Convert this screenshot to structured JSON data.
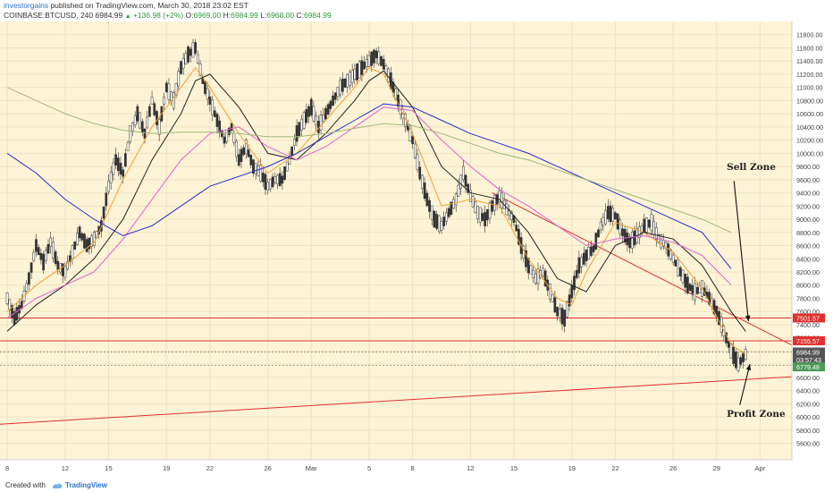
{
  "header": {
    "author": "investorgains",
    "published": " published on TradingView.com, March 30, 2018 23:02 EST",
    "symbol": "COINBASE:BTCUSD, 240",
    "price": "6984.99",
    "change": "+136.98 (+2%)",
    "ohlc_label_o": "O:",
    "ohlc_o": "6969.00",
    "ohlc_label_h": "H:",
    "ohlc_h": "6984.99",
    "ohlc_label_l": "L:",
    "ohlc_l": "6968.00",
    "ohlc_label_c": "C:",
    "ohlc_c": "6984.99"
  },
  "footer": {
    "created_with": "Created with",
    "brand": "TradingView",
    "brand_icon": "tradingview-logo-icon"
  },
  "chart_data": {
    "type": "candlestick",
    "background": "#fdf3d6",
    "x_ticks": [
      {
        "label": "8",
        "x": 0
      },
      {
        "label": "12",
        "x": 4
      },
      {
        "label": "15",
        "x": 7
      },
      {
        "label": "19",
        "x": 11
      },
      {
        "label": "22",
        "x": 14
      },
      {
        "label": "26",
        "x": 18
      },
      {
        "label": "Mar",
        "x": 21
      },
      {
        "label": "5",
        "x": 25
      },
      {
        "label": "8",
        "x": 28
      },
      {
        "label": "12",
        "x": 32
      },
      {
        "label": "15",
        "x": 35
      },
      {
        "label": "19",
        "x": 39
      },
      {
        "label": "22",
        "x": 42
      },
      {
        "label": "26",
        "x": 46
      },
      {
        "label": "29",
        "x": 49
      },
      {
        "label": "Apr",
        "x": 52
      }
    ],
    "xlim": [
      -0.5,
      54.2
    ],
    "ylim": [
      5350,
      12000
    ],
    "y_ticks": [
      5600,
      5800,
      6000,
      6200,
      6400,
      6600,
      6800,
      7000,
      7200,
      7400,
      7600,
      7800,
      8000,
      8200,
      8400,
      8600,
      8800,
      9000,
      9200,
      9400,
      9600,
      9800,
      10000,
      10200,
      10400,
      10600,
      10800,
      11000,
      11200,
      11400,
      11600,
      11800
    ],
    "y_tick_labels": [
      "5600.00",
      "5800.00",
      "6000.00",
      "6200.00",
      "6400.00",
      "6600.00",
      "6800.00",
      "7000.00",
      "7200.00",
      "7400.00",
      "7600.00",
      "7800.00",
      "8000.00",
      "8200.00",
      "8400.00",
      "8600.00",
      "8800.00",
      "9000.00",
      "9200.00",
      "9400.00",
      "9600.00",
      "9800.00",
      "10000.00",
      "10200.00",
      "10400.00",
      "10600.00",
      "10800.00",
      "11000.00",
      "11200.00",
      "11400.00",
      "11600.00",
      "11800.00"
    ],
    "price_path": [
      [
        0,
        7800
      ],
      [
        0.5,
        7500
      ],
      [
        1,
        7700
      ],
      [
        1.5,
        8100
      ],
      [
        2,
        8600
      ],
      [
        2.5,
        8350
      ],
      [
        3,
        8650
      ],
      [
        3.5,
        8300
      ],
      [
        4,
        8200
      ],
      [
        4.5,
        8500
      ],
      [
        5,
        8800
      ],
      [
        5.5,
        8600
      ],
      [
        6,
        8700
      ],
      [
        6.5,
        8900
      ],
      [
        7,
        9500
      ],
      [
        7.5,
        9900
      ],
      [
        8,
        9700
      ],
      [
        8.5,
        10300
      ],
      [
        9,
        10600
      ],
      [
        9.5,
        10300
      ],
      [
        10,
        10800
      ],
      [
        10.5,
        10400
      ],
      [
        11,
        11000
      ],
      [
        11.5,
        10800
      ],
      [
        12,
        11300
      ],
      [
        12.5,
        11500
      ],
      [
        13,
        11600
      ],
      [
        13.5,
        11100
      ],
      [
        14,
        10800
      ],
      [
        14.5,
        10500
      ],
      [
        15,
        10200
      ],
      [
        15.5,
        10400
      ],
      [
        16,
        9900
      ],
      [
        16.5,
        10100
      ],
      [
        17,
        9800
      ],
      [
        17.5,
        9700
      ],
      [
        18,
        9500
      ],
      [
        18.5,
        9600
      ],
      [
        19,
        9600
      ],
      [
        19.5,
        9900
      ],
      [
        20,
        10300
      ],
      [
        20.5,
        10500
      ],
      [
        21,
        10700
      ],
      [
        21.5,
        10400
      ],
      [
        22,
        10600
      ],
      [
        22.5,
        10800
      ],
      [
        23,
        11000
      ],
      [
        23.5,
        11100
      ],
      [
        24,
        11200
      ],
      [
        24.5,
        11300
      ],
      [
        25,
        11400
      ],
      [
        25.5,
        11500
      ],
      [
        26,
        11350
      ],
      [
        26.5,
        11100
      ],
      [
        27,
        10800
      ],
      [
        27.5,
        10500
      ],
      [
        28,
        10200
      ],
      [
        28.5,
        9700
      ],
      [
        29,
        9300
      ],
      [
        29.5,
        9000
      ],
      [
        30,
        8900
      ],
      [
        30.5,
        9100
      ],
      [
        31,
        9300
      ],
      [
        31.5,
        9700
      ],
      [
        32,
        9350
      ],
      [
        32.5,
        9100
      ],
      [
        33,
        9000
      ],
      [
        33.5,
        9200
      ],
      [
        34,
        9350
      ],
      [
        34.5,
        9150
      ],
      [
        35,
        9000
      ],
      [
        35.5,
        8600
      ],
      [
        36,
        8300
      ],
      [
        36.5,
        8100
      ],
      [
        37,
        8200
      ],
      [
        37.5,
        7900
      ],
      [
        38,
        7600
      ],
      [
        38.5,
        7500
      ],
      [
        39,
        7900
      ],
      [
        39.5,
        8300
      ],
      [
        40,
        8450
      ],
      [
        40.5,
        8550
      ],
      [
        41,
        8900
      ],
      [
        41.5,
        9100
      ],
      [
        42,
        9050
      ],
      [
        42.5,
        8800
      ],
      [
        43,
        8650
      ],
      [
        43.5,
        8750
      ],
      [
        44,
        8900
      ],
      [
        44.5,
        8950
      ],
      [
        45,
        8700
      ],
      [
        45.5,
        8600
      ],
      [
        46,
        8400
      ],
      [
        46.5,
        8200
      ],
      [
        47,
        8000
      ],
      [
        47.5,
        7900
      ],
      [
        48,
        7950
      ],
      [
        48.5,
        7800
      ],
      [
        49,
        7600
      ],
      [
        49.5,
        7300
      ],
      [
        50,
        7000
      ],
      [
        50.5,
        6800
      ],
      [
        51,
        6950
      ]
    ],
    "ma_series": [
      {
        "color": "#f0a030",
        "points": [
          [
            0,
            7600
          ],
          [
            2,
            8000
          ],
          [
            4,
            8300
          ],
          [
            6,
            8650
          ],
          [
            8,
            9600
          ],
          [
            10,
            10400
          ],
          [
            12,
            11000
          ],
          [
            13,
            11300
          ],
          [
            14,
            11000
          ],
          [
            16,
            10300
          ],
          [
            18,
            9700
          ],
          [
            20,
            10000
          ],
          [
            22,
            10500
          ],
          [
            24,
            11000
          ],
          [
            25,
            11300
          ],
          [
            26,
            11200
          ],
          [
            28,
            10300
          ],
          [
            30,
            9200
          ],
          [
            32,
            9300
          ],
          [
            34,
            9200
          ],
          [
            36,
            8400
          ],
          [
            38,
            7800
          ],
          [
            39,
            7700
          ],
          [
            40,
            8200
          ],
          [
            42,
            8950
          ],
          [
            44,
            8800
          ],
          [
            46,
            8500
          ],
          [
            48,
            7950
          ],
          [
            50,
            7100
          ],
          [
            51,
            6950
          ]
        ]
      },
      {
        "color": "#222222",
        "points": [
          [
            0,
            7300
          ],
          [
            2,
            7700
          ],
          [
            4,
            8000
          ],
          [
            6,
            8400
          ],
          [
            8,
            9000
          ],
          [
            10,
            9900
          ],
          [
            12,
            10600
          ],
          [
            13,
            11100
          ],
          [
            14,
            11200
          ],
          [
            16,
            10700
          ],
          [
            18,
            10000
          ],
          [
            20,
            9900
          ],
          [
            22,
            10300
          ],
          [
            24,
            10800
          ],
          [
            25,
            11100
          ],
          [
            26,
            11250
          ],
          [
            28,
            10700
          ],
          [
            30,
            9800
          ],
          [
            32,
            9400
          ],
          [
            34,
            9300
          ],
          [
            36,
            8800
          ],
          [
            38,
            8100
          ],
          [
            40,
            7900
          ],
          [
            42,
            8600
          ],
          [
            44,
            8800
          ],
          [
            46,
            8700
          ],
          [
            48,
            8300
          ],
          [
            50,
            7600
          ],
          [
            51,
            7300
          ]
        ]
      },
      {
        "color": "#e060d0",
        "points": [
          [
            0,
            7500
          ],
          [
            2,
            7800
          ],
          [
            4,
            8000
          ],
          [
            6,
            8200
          ],
          [
            8,
            8700
          ],
          [
            10,
            9300
          ],
          [
            12,
            9900
          ],
          [
            14,
            10300
          ],
          [
            16,
            10400
          ],
          [
            18,
            10100
          ],
          [
            20,
            9900
          ],
          [
            22,
            10100
          ],
          [
            24,
            10400
          ],
          [
            26,
            10700
          ],
          [
            28,
            10650
          ],
          [
            30,
            10200
          ],
          [
            32,
            9800
          ],
          [
            34,
            9450
          ],
          [
            36,
            9200
          ],
          [
            38,
            8900
          ],
          [
            40,
            8600
          ],
          [
            42,
            8700
          ],
          [
            44,
            8750
          ],
          [
            46,
            8650
          ],
          [
            48,
            8450
          ],
          [
            50,
            8000
          ]
        ]
      },
      {
        "color": "#2a2ad0",
        "points": [
          [
            0,
            10000
          ],
          [
            2,
            9700
          ],
          [
            4,
            9300
          ],
          [
            6,
            9000
          ],
          [
            8,
            8750
          ],
          [
            10,
            8900
          ],
          [
            12,
            9200
          ],
          [
            14,
            9500
          ],
          [
            16,
            9650
          ],
          [
            18,
            9800
          ],
          [
            20,
            10000
          ],
          [
            22,
            10250
          ],
          [
            24,
            10500
          ],
          [
            26,
            10750
          ],
          [
            28,
            10700
          ],
          [
            30,
            10500
          ],
          [
            32,
            10300
          ],
          [
            34,
            10150
          ],
          [
            36,
            10000
          ],
          [
            38,
            9800
          ],
          [
            40,
            9600
          ],
          [
            42,
            9400
          ],
          [
            44,
            9200
          ],
          [
            46,
            9000
          ],
          [
            48,
            8800
          ],
          [
            50,
            8250
          ]
        ]
      },
      {
        "color": "#9fb87a",
        "points": [
          [
            0,
            11000
          ],
          [
            2,
            10800
          ],
          [
            4,
            10600
          ],
          [
            6,
            10450
          ],
          [
            8,
            10350
          ],
          [
            10,
            10300
          ],
          [
            12,
            10320
          ],
          [
            14,
            10320
          ],
          [
            16,
            10300
          ],
          [
            18,
            10250
          ],
          [
            20,
            10250
          ],
          [
            22,
            10300
          ],
          [
            24,
            10380
          ],
          [
            26,
            10450
          ],
          [
            28,
            10420
          ],
          [
            30,
            10300
          ],
          [
            32,
            10150
          ],
          [
            34,
            10000
          ],
          [
            36,
            9900
          ],
          [
            38,
            9750
          ],
          [
            40,
            9600
          ],
          [
            42,
            9450
          ],
          [
            44,
            9300
          ],
          [
            46,
            9150
          ],
          [
            48,
            9000
          ],
          [
            50,
            8800
          ]
        ]
      }
    ],
    "trendlines": [
      {
        "color": "#e03030",
        "from": [
          33.5,
          9400
        ],
        "to": [
          54.2,
          7090
        ]
      },
      {
        "color": "#e03030",
        "from": [
          -0.5,
          5890
        ],
        "to": [
          54.2,
          6610
        ]
      },
      {
        "color": "#e03030",
        "from": [
          -0.5,
          7501.57
        ],
        "to": [
          54.2,
          7501.57
        ]
      },
      {
        "color": "#e03030",
        "from": [
          -0.5,
          7155.57
        ],
        "to": [
          54.2,
          7155.57
        ]
      }
    ],
    "dotted_lines": [
      {
        "color": "#777777",
        "y": 6984.99
      },
      {
        "color": "#777777",
        "y": 6779.48
      }
    ],
    "price_labels": [
      {
        "text": "7501.57",
        "y": 7501.57,
        "bg": "#e03030"
      },
      {
        "text": "7155.57",
        "y": 7155.57,
        "bg": "#e03030"
      },
      {
        "text": "6984.99",
        "y": 6984.99,
        "bg": "#555555"
      },
      {
        "text": "03:57:43",
        "y": 6870,
        "bg": "#555555"
      },
      {
        "text": "6779.48",
        "y": 6760,
        "bg": "#4c9a5a"
      }
    ],
    "annotations": [
      {
        "text": "Sell Zone",
        "x": 49.7,
        "y": 9750,
        "arrow_from": [
          50.2,
          9580
        ],
        "arrow_to": [
          51.2,
          7450
        ]
      },
      {
        "text": "Profit Zone",
        "x": 49.7,
        "y": 6000,
        "arrow_from": [
          50.6,
          6180
        ],
        "arrow_to": [
          51.3,
          6800
        ]
      }
    ]
  }
}
